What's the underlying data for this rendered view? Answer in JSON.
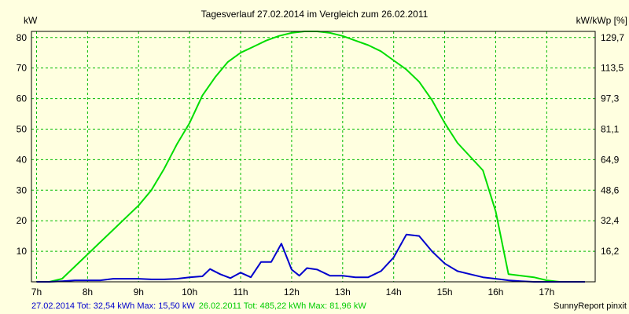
{
  "chart_data": {
    "type": "line",
    "title": "Tagesverlauf 27.02.2014 im Vergleich zum 26.02.2011",
    "ylabel_left": "kW",
    "ylabel_right": "kW/kWp [%]",
    "ylim": [
      0,
      82
    ],
    "y_ticks_left": [
      "10",
      "20",
      "30",
      "40",
      "50",
      "60",
      "70",
      "80"
    ],
    "y_ticks_right": [
      "16,2",
      "32,4",
      "48,6",
      "64,9",
      "81,1",
      "97,3",
      "113,5",
      "129,7"
    ],
    "x_tick_labels": [
      "7h",
      "8h",
      "9h",
      "10h",
      "11h",
      "12h",
      "13h",
      "14h",
      "15h",
      "16h",
      "17h"
    ],
    "grid": true,
    "series": [
      {
        "name": "27.02.2014",
        "color": "#0000cc",
        "x": [
          7.0,
          7.25,
          7.5,
          7.75,
          8.0,
          8.25,
          8.5,
          8.75,
          9.0,
          9.25,
          9.5,
          9.75,
          10.0,
          10.25,
          10.4,
          10.6,
          10.8,
          11.0,
          11.2,
          11.4,
          11.6,
          11.8,
          12.0,
          12.15,
          12.3,
          12.5,
          12.75,
          13.0,
          13.25,
          13.5,
          13.75,
          14.0,
          14.25,
          14.5,
          14.6,
          14.75,
          15.0,
          15.25,
          15.5,
          15.75,
          16.0,
          16.25,
          16.5,
          16.75,
          17.0,
          17.25,
          17.5,
          17.75
        ],
        "y": [
          0,
          0,
          0.2,
          0.5,
          0.5,
          0.5,
          1,
          1,
          1,
          0.8,
          0.8,
          1,
          1.5,
          1.8,
          4.2,
          2.5,
          1.2,
          3.0,
          1.5,
          6.5,
          6.5,
          12.5,
          4.0,
          2.0,
          4.5,
          4.0,
          2.0,
          2.0,
          1.5,
          1.5,
          3.5,
          8.0,
          15.5,
          15.0,
          13.0,
          10.0,
          6.0,
          3.5,
          2.5,
          1.5,
          1.0,
          0.5,
          0.2,
          0,
          0,
          0,
          0,
          0
        ]
      },
      {
        "name": "26.02.2011",
        "color": "#00dd00",
        "x": [
          7.0,
          7.25,
          7.5,
          7.75,
          8.0,
          8.25,
          8.5,
          8.75,
          9.0,
          9.25,
          9.5,
          9.75,
          10.0,
          10.25,
          10.5,
          10.75,
          11.0,
          11.25,
          11.5,
          11.75,
          12.0,
          12.25,
          12.5,
          12.75,
          13.0,
          13.25,
          13.5,
          13.75,
          14.0,
          14.25,
          14.5,
          14.75,
          15.0,
          15.25,
          15.5,
          15.75,
          16.0,
          16.25,
          16.5,
          16.75,
          17.0,
          17.25,
          17.5,
          17.75
        ],
        "y": [
          0,
          0,
          1,
          5,
          9,
          13,
          17,
          21,
          25,
          30,
          37,
          45,
          52,
          61,
          67,
          72,
          75,
          77,
          79,
          80.5,
          81.5,
          82,
          82,
          81.5,
          80.5,
          79,
          77.5,
          75.5,
          72.5,
          69.5,
          65.5,
          59.5,
          52,
          45.5,
          41,
          36.5,
          23,
          2.5,
          2,
          1.5,
          0.5,
          0,
          0,
          0
        ]
      }
    ],
    "footer_2014": "27.02.2014 Tot: 32,54 kWh Max: 15,50 kW",
    "footer_2011": "26.02.2011 Tot: 485,22 kWh Max: 81,96 kW",
    "credit": "SunnyReport pinxit"
  }
}
